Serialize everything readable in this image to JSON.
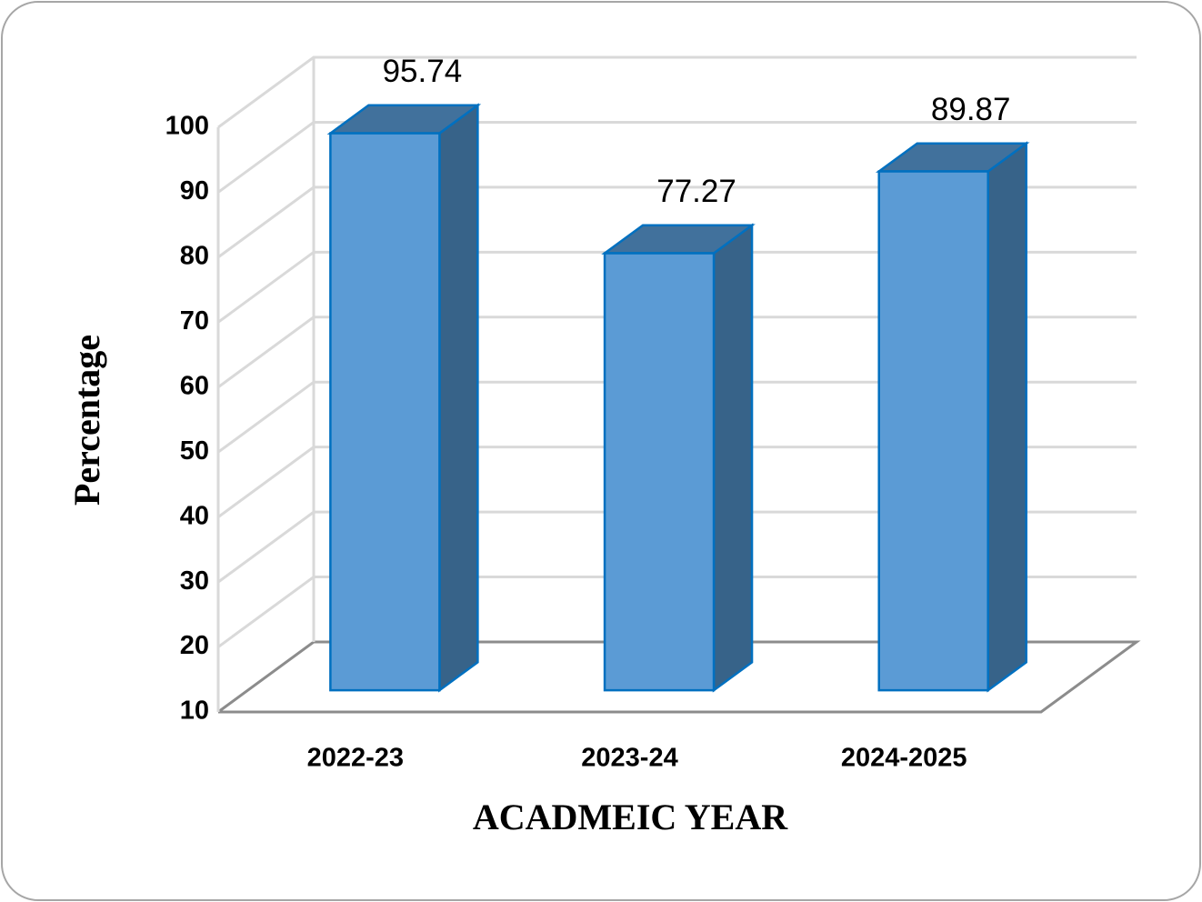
{
  "chart_data": {
    "type": "bar3d",
    "x_label": "ACADMEIC YEAR",
    "y_label": "Percentage",
    "categories": [
      "2022-23",
      "2023-24",
      "2024-2025"
    ],
    "values": [
      95.74,
      77.27,
      89.87
    ],
    "color": "#5b9bd5",
    "ylim": [
      10,
      100
    ],
    "yticks": [
      10,
      20,
      30,
      40,
      50,
      60,
      70,
      80,
      90,
      100
    ],
    "grid": true
  }
}
